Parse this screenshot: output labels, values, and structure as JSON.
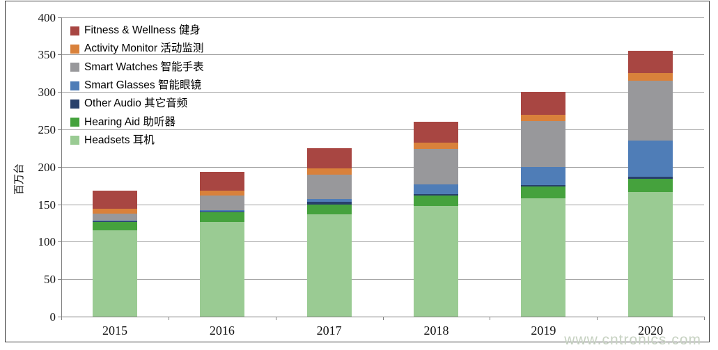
{
  "watermark": "www.cntronics.com",
  "chart_data": {
    "type": "bar",
    "stacked": true,
    "title": "",
    "xlabel": "",
    "ylabel": "百万台",
    "ylim": [
      0,
      400
    ],
    "ytick_step": 50,
    "yticks": [
      400,
      350,
      300,
      250,
      200,
      150,
      100,
      50,
      0
    ],
    "grid": "horizontal",
    "legend_position": "top-left-inside",
    "categories": [
      "2015",
      "2016",
      "2017",
      "2018",
      "2019",
      "2020"
    ],
    "series": [
      {
        "name": "Fitness & Wellness  健身",
        "color": "#a84642",
        "values": [
          24,
          25,
          27,
          28,
          30,
          30
        ]
      },
      {
        "name": "Activity Monitor  活动监测",
        "color": "#d9813b",
        "values": [
          6,
          6,
          8,
          8,
          9,
          10
        ]
      },
      {
        "name": "Smart Watches  智能手表",
        "color": "#98989b",
        "values": [
          10,
          20,
          33,
          47,
          61,
          80
        ]
      },
      {
        "name": "Smart Glasses   智能眼镜",
        "color": "#4f7db7",
        "values": [
          1,
          2,
          4,
          13,
          24,
          48
        ]
      },
      {
        "name": "Other Audio   其它音频",
        "color": "#28406b",
        "values": [
          1,
          1,
          3,
          2,
          2,
          3
        ]
      },
      {
        "name": "Hearing Aid   助听器",
        "color": "#45a23d",
        "values": [
          11,
          13,
          13,
          14,
          16,
          18
        ]
      },
      {
        "name": "Headsets 耳机",
        "color": "#9acb93",
        "values": [
          115,
          126,
          137,
          148,
          158,
          166
        ]
      }
    ],
    "totals": [
      168,
      193,
      225,
      260,
      300,
      355
    ],
    "colors": {
      "gridline": "#a0a0a0",
      "axis": "#7f7f7f",
      "text": "#111111",
      "watermark": "#c7d2c2"
    }
  }
}
